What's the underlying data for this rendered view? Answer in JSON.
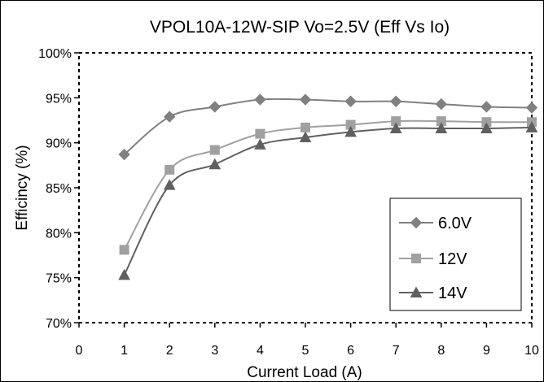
{
  "chart_data": {
    "type": "line",
    "title": "VPOL10A-12W-SIP Vo=2.5V (Eff Vs Io)",
    "xlabel": "Current Load (A)",
    "ylabel": "Efficincy (%)",
    "xlim": [
      0,
      10
    ],
    "ylim": [
      70,
      100
    ],
    "x_ticks": [
      "0",
      "1",
      "2",
      "3",
      "4",
      "5",
      "6",
      "7",
      "8",
      "9",
      "10"
    ],
    "y_ticks": [
      "70%",
      "75%",
      "80%",
      "85%",
      "90%",
      "95%",
      "100%"
    ],
    "grid": false,
    "legend_position": "lower-right",
    "x": [
      1,
      2,
      3,
      4,
      5,
      6,
      7,
      8,
      9,
      10
    ],
    "series": [
      {
        "name": "6.0V",
        "marker": "diamond",
        "color": "#808080",
        "values": [
          88.7,
          92.9,
          94.0,
          94.8,
          94.8,
          94.6,
          94.6,
          94.3,
          94.0,
          93.9
        ]
      },
      {
        "name": "12V",
        "marker": "square",
        "color": "#a0a0a0",
        "values": [
          78.1,
          87.0,
          89.2,
          91.0,
          91.7,
          92.0,
          92.4,
          92.4,
          92.3,
          92.3
        ]
      },
      {
        "name": "14V",
        "marker": "triangle",
        "color": "#606060",
        "values": [
          75.3,
          85.3,
          87.6,
          89.8,
          90.6,
          91.2,
          91.6,
          91.6,
          91.6,
          91.7
        ]
      }
    ]
  }
}
